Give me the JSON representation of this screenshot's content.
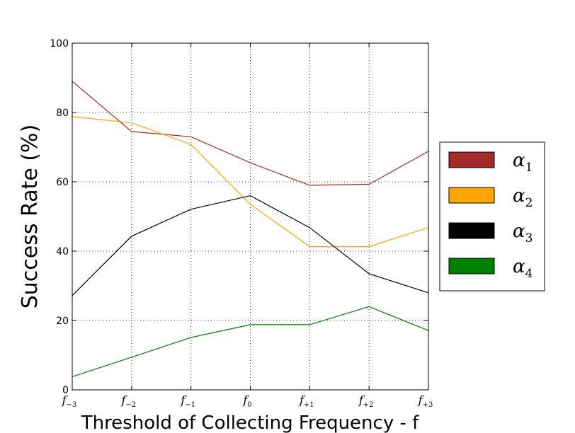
{
  "chart_data": {
    "type": "line",
    "title": "",
    "xlabel": "Threshold of Collecting Frequency - f",
    "ylabel": "Success Rate (%)",
    "ylim": [
      0,
      100
    ],
    "yticks": [
      0,
      20,
      40,
      60,
      80,
      100
    ],
    "grid": true,
    "legend_position": "outside-right",
    "categories": [
      "f_{-3}",
      "f_{-2}",
      "f_{-1}",
      "f_{0}",
      "f_{+1}",
      "f_{+2}",
      "f_{+3}"
    ],
    "category_labels": [
      {
        "main": "f",
        "sub": "−3"
      },
      {
        "main": "f",
        "sub": "−2"
      },
      {
        "main": "f",
        "sub": "−1"
      },
      {
        "main": "f",
        "sub": "0"
      },
      {
        "main": "f",
        "sub": "+1"
      },
      {
        "main": "f",
        "sub": "+2"
      },
      {
        "main": "f",
        "sub": "+3"
      }
    ],
    "series": [
      {
        "name": "α1",
        "name_main": "α",
        "name_sub": "1",
        "color": "#a52a2a",
        "values": [
          89,
          74.5,
          73,
          65.5,
          59,
          59.3,
          68.8
        ]
      },
      {
        "name": "α2",
        "name_main": "α",
        "name_sub": "2",
        "color": "#ffa500",
        "values": [
          78.8,
          77,
          70.8,
          53.5,
          41.3,
          41.3,
          46.8
        ]
      },
      {
        "name": "α3",
        "name_main": "α",
        "name_sub": "3",
        "color": "#000000",
        "values": [
          27.2,
          44.3,
          52.1,
          56,
          46.8,
          33.5,
          28
        ]
      },
      {
        "name": "α4",
        "name_main": "α",
        "name_sub": "4",
        "color": "#008000",
        "values": [
          3.8,
          9.4,
          15.1,
          18.8,
          18.8,
          24,
          17.1
        ]
      }
    ]
  }
}
